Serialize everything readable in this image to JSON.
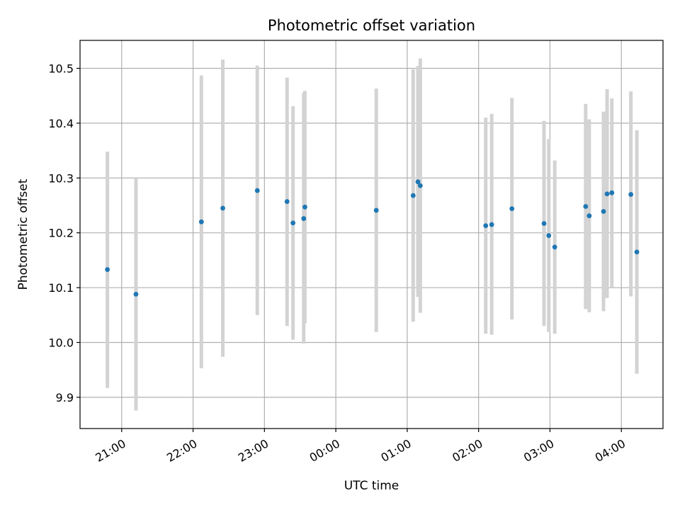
{
  "chart_data": {
    "type": "scatter",
    "title": "Photometric offset variation",
    "xlabel": "UTC time",
    "ylabel": "Photometric offset",
    "x_tick_labels": [
      "21:00",
      "22:00",
      "23:00",
      "00:00",
      "01:00",
      "02:00",
      "03:00",
      "04:00"
    ],
    "y_tick_labels": [
      "9.9",
      "10.0",
      "10.1",
      "10.2",
      "10.3",
      "10.4",
      "10.5"
    ],
    "ylim": [
      9.843,
      10.551
    ],
    "xlim": [
      "20:25",
      "04:35"
    ],
    "grid": true,
    "colors": {
      "points": "#1f77b4",
      "errorbars": "#d3d3d3",
      "grid": "#b0b0b0"
    },
    "points": [
      {
        "x": "20:48",
        "y": 10.133,
        "ylow": 9.917,
        "yhigh": 10.348
      },
      {
        "x": "21:12",
        "y": 10.088,
        "ylow": 9.876,
        "yhigh": 10.3
      },
      {
        "x": "22:07",
        "y": 10.22,
        "ylow": 9.953,
        "yhigh": 10.487
      },
      {
        "x": "22:25",
        "y": 10.245,
        "ylow": 9.974,
        "yhigh": 10.516
      },
      {
        "x": "22:54",
        "y": 10.277,
        "ylow": 10.05,
        "yhigh": 10.505
      },
      {
        "x": "23:19",
        "y": 10.257,
        "ylow": 10.03,
        "yhigh": 10.483
      },
      {
        "x": "23:24",
        "y": 10.218,
        "ylow": 10.005,
        "yhigh": 10.431
      },
      {
        "x": "23:33",
        "y": 10.226,
        "ylow": 9.998,
        "yhigh": 10.455
      },
      {
        "x": "23:34",
        "y": 10.247,
        "ylow": 10.035,
        "yhigh": 10.459
      },
      {
        "x": "00:34",
        "y": 10.241,
        "ylow": 10.019,
        "yhigh": 10.463
      },
      {
        "x": "01:05",
        "y": 10.268,
        "ylow": 10.038,
        "yhigh": 10.498
      },
      {
        "x": "01:09",
        "y": 10.293,
        "ylow": 10.083,
        "yhigh": 10.504
      },
      {
        "x": "01:11",
        "y": 10.286,
        "ylow": 10.054,
        "yhigh": 10.518
      },
      {
        "x": "02:06",
        "y": 10.213,
        "ylow": 10.016,
        "yhigh": 10.41
      },
      {
        "x": "02:11",
        "y": 10.215,
        "ylow": 10.014,
        "yhigh": 10.417
      },
      {
        "x": "02:28",
        "y": 10.244,
        "ylow": 10.042,
        "yhigh": 10.446
      },
      {
        "x": "02:55",
        "y": 10.217,
        "ylow": 10.03,
        "yhigh": 10.404
      },
      {
        "x": "02:59",
        "y": 10.195,
        "ylow": 10.019,
        "yhigh": 10.371
      },
      {
        "x": "03:04",
        "y": 10.174,
        "ylow": 10.016,
        "yhigh": 10.332
      },
      {
        "x": "03:30",
        "y": 10.248,
        "ylow": 10.061,
        "yhigh": 10.435
      },
      {
        "x": "03:33",
        "y": 10.231,
        "ylow": 10.055,
        "yhigh": 10.407
      },
      {
        "x": "03:45",
        "y": 10.239,
        "ylow": 10.057,
        "yhigh": 10.421
      },
      {
        "x": "03:48",
        "y": 10.271,
        "ylow": 10.081,
        "yhigh": 10.462
      },
      {
        "x": "03:52",
        "y": 10.273,
        "ylow": 10.101,
        "yhigh": 10.445
      },
      {
        "x": "04:08",
        "y": 10.27,
        "ylow": 10.084,
        "yhigh": 10.458
      },
      {
        "x": "04:13",
        "y": 10.165,
        "ylow": 9.943,
        "yhigh": 10.387
      }
    ]
  }
}
